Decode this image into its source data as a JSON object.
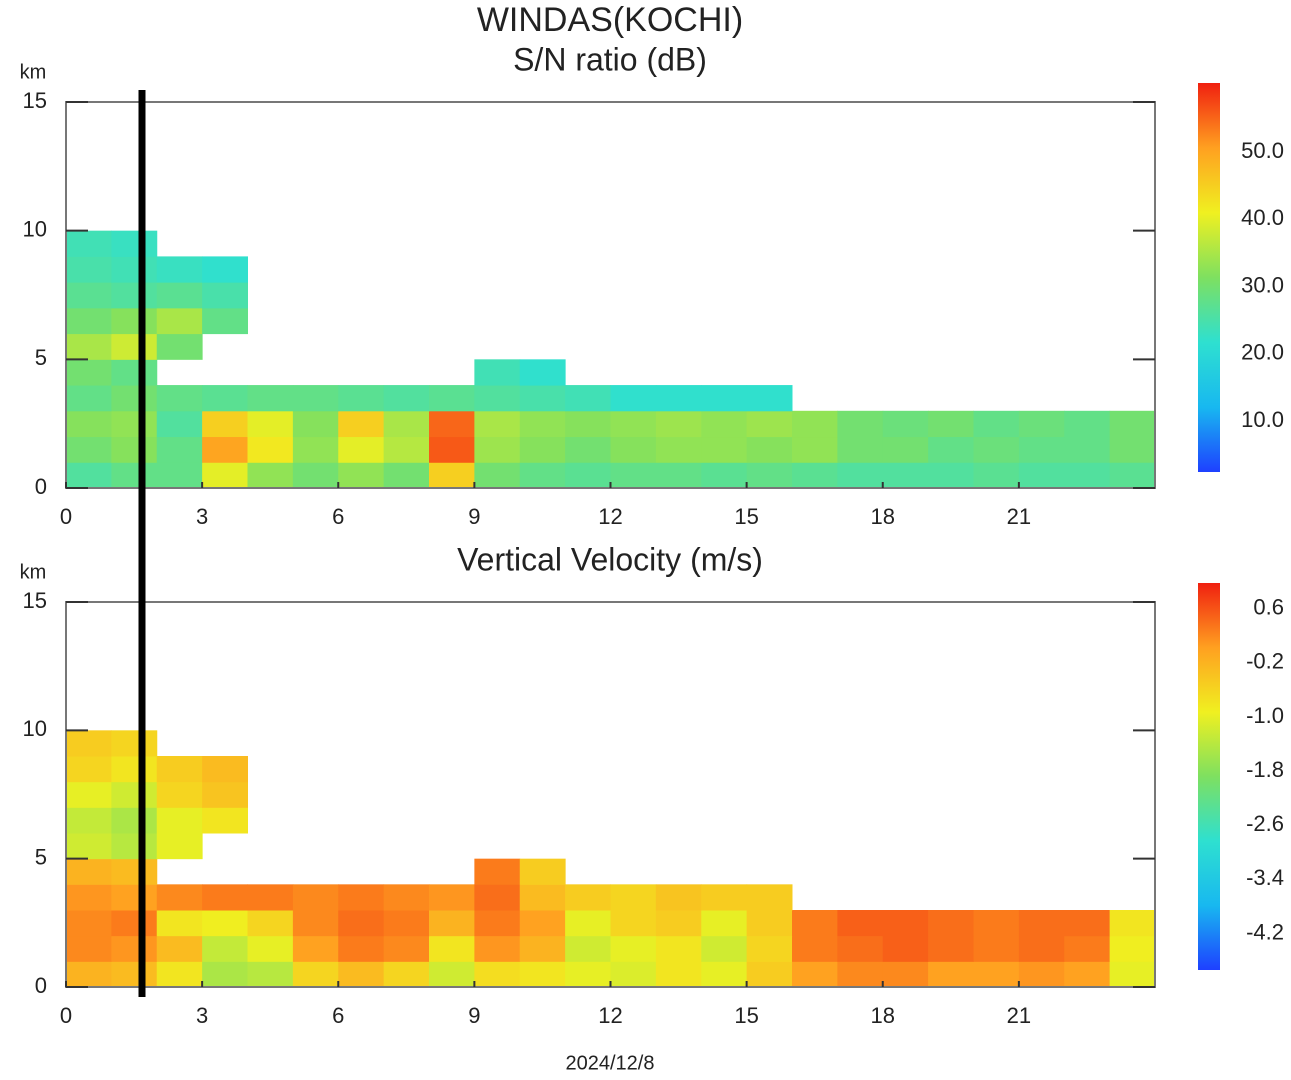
{
  "title": "WINDAS(KOCHI)",
  "xlabel": "2024/12/8",
  "chart_data": [
    {
      "type": "heatmap",
      "title": "S/N ratio (dB)",
      "ylabel": "km",
      "x": [
        0,
        1,
        2,
        3,
        4,
        5,
        6,
        7,
        8,
        9,
        10,
        11,
        12,
        13,
        14,
        15,
        16,
        17,
        18,
        19,
        20,
        21,
        22,
        23
      ],
      "y": [
        0,
        1,
        2,
        3,
        4,
        5,
        6,
        7,
        8,
        9
      ],
      "values": [
        [
          26,
          28,
          28,
          40,
          33,
          30,
          33,
          30,
          45,
          30,
          28,
          27,
          28,
          28,
          27,
          28,
          27,
          26,
          26,
          26,
          27,
          26,
          26,
          27
        ],
        [
          30,
          32,
          28,
          50,
          42,
          33,
          40,
          36,
          56,
          34,
          32,
          30,
          32,
          33,
          33,
          32,
          33,
          30,
          30,
          28,
          29,
          28,
          28,
          30
        ],
        [
          32,
          33,
          26,
          45,
          40,
          32,
          45,
          35,
          55,
          35,
          33,
          32,
          33,
          34,
          33,
          34,
          33,
          30,
          29,
          30,
          28,
          29,
          28,
          30
        ],
        [
          28,
          30,
          28,
          27,
          28,
          28,
          27,
          26,
          27,
          26,
          25,
          24,
          22,
          22,
          22,
          22,
          null,
          null,
          null,
          null,
          null,
          null,
          null,
          null
        ],
        [
          30,
          28,
          null,
          null,
          null,
          null,
          null,
          null,
          null,
          24,
          22,
          null,
          null,
          null,
          null,
          null,
          null,
          null,
          null,
          null,
          null,
          null,
          null,
          null
        ],
        [
          35,
          38,
          30,
          null,
          null,
          null,
          null,
          null,
          null,
          null,
          null,
          null,
          null,
          null,
          null,
          null,
          null,
          null,
          null,
          null,
          null,
          null,
          null,
          null
        ],
        [
          30,
          32,
          35,
          28,
          null,
          null,
          null,
          null,
          null,
          null,
          null,
          null,
          null,
          null,
          null,
          null,
          null,
          null,
          null,
          null,
          null,
          null,
          null,
          null
        ],
        [
          27,
          26,
          27,
          25,
          null,
          null,
          null,
          null,
          null,
          null,
          null,
          null,
          null,
          null,
          null,
          null,
          null,
          null,
          null,
          null,
          null,
          null,
          null,
          null
        ],
        [
          25,
          24,
          23,
          22,
          null,
          null,
          null,
          null,
          null,
          null,
          null,
          null,
          null,
          null,
          null,
          null,
          null,
          null,
          null,
          null,
          null,
          null,
          null,
          null
        ],
        [
          24,
          23,
          null,
          null,
          null,
          null,
          null,
          null,
          null,
          null,
          null,
          null,
          null,
          null,
          null,
          null,
          null,
          null,
          null,
          null,
          null,
          null,
          null,
          null
        ]
      ],
      "xlim": [
        0,
        24
      ],
      "ylim": [
        0,
        15
      ],
      "xticks": [
        0,
        3,
        6,
        9,
        12,
        15,
        18,
        21
      ],
      "yticks": [
        0,
        5,
        10,
        15
      ],
      "colorbar": {
        "lim": [
          2.4,
          60.3
        ],
        "ticks": [
          {
            "value": 10,
            "label": "10.0"
          },
          {
            "value": 20,
            "label": "20.0"
          },
          {
            "value": 30,
            "label": "30.0"
          },
          {
            "value": 40,
            "label": "40.0"
          },
          {
            "value": 50,
            "label": "50.0"
          }
        ]
      },
      "colors": [
        "#1e40ff",
        "#18b8f0",
        "#2ee0d0",
        "#7ee060",
        "#f0f020",
        "#ffa020",
        "#f02010"
      ]
    },
    {
      "type": "heatmap",
      "title": "Vertical Velocity (m/s)",
      "ylabel": "km",
      "x": [
        0,
        1,
        2,
        3,
        4,
        5,
        6,
        7,
        8,
        9,
        10,
        11,
        12,
        13,
        14,
        15,
        16,
        17,
        18,
        19,
        20,
        21,
        22,
        23
      ],
      "y": [
        0,
        1,
        2,
        3,
        4,
        5,
        6,
        7,
        8,
        9
      ],
      "values": [
        [
          -0.2,
          -0.3,
          -0.8,
          -1.5,
          -1.4,
          -0.6,
          -0.3,
          -0.6,
          -1.2,
          -0.7,
          -0.8,
          -1.0,
          -1.1,
          -0.8,
          -1.0,
          -0.5,
          0.0,
          0.2,
          0.2,
          0.0,
          0.0,
          0.1,
          0.0,
          -1.0
        ],
        [
          0.2,
          0.1,
          -0.3,
          -1.3,
          -1.0,
          0.0,
          0.3,
          0.2,
          -0.8,
          0.1,
          -0.2,
          -1.2,
          -1.0,
          -0.8,
          -1.2,
          -0.6,
          0.3,
          0.4,
          0.5,
          0.4,
          0.3,
          0.4,
          0.3,
          -0.9
        ],
        [
          0.2,
          0.3,
          -0.8,
          -0.9,
          -0.6,
          0.2,
          0.4,
          0.3,
          -0.2,
          0.3,
          0.0,
          -1.0,
          -0.6,
          -0.5,
          -1.0,
          -0.5,
          0.3,
          0.5,
          0.5,
          0.4,
          0.3,
          0.4,
          0.4,
          -0.8
        ],
        [
          0.1,
          0.0,
          0.2,
          0.3,
          0.3,
          0.2,
          0.3,
          0.2,
          0.1,
          0.4,
          -0.3,
          -0.5,
          -0.6,
          -0.4,
          -0.5,
          -0.5,
          null,
          null,
          null,
          null,
          null,
          null,
          null,
          null
        ],
        [
          -0.2,
          -0.3,
          null,
          null,
          null,
          null,
          null,
          null,
          null,
          0.3,
          -0.5,
          null,
          null,
          null,
          null,
          null,
          null,
          null,
          null,
          null,
          null,
          null,
          null,
          null
        ],
        [
          -1.2,
          -1.4,
          -1.0,
          null,
          null,
          null,
          null,
          null,
          null,
          null,
          null,
          null,
          null,
          null,
          null,
          null,
          null,
          null,
          null,
          null,
          null,
          null,
          null,
          null
        ],
        [
          -1.3,
          -1.5,
          -1.0,
          -0.8,
          null,
          null,
          null,
          null,
          null,
          null,
          null,
          null,
          null,
          null,
          null,
          null,
          null,
          null,
          null,
          null,
          null,
          null,
          null,
          null
        ],
        [
          -1.0,
          -1.2,
          -0.6,
          -0.4,
          null,
          null,
          null,
          null,
          null,
          null,
          null,
          null,
          null,
          null,
          null,
          null,
          null,
          null,
          null,
          null,
          null,
          null,
          null,
          null
        ],
        [
          -0.6,
          -0.8,
          -0.5,
          -0.3,
          null,
          null,
          null,
          null,
          null,
          null,
          null,
          null,
          null,
          null,
          null,
          null,
          null,
          null,
          null,
          null,
          null,
          null,
          null,
          null
        ],
        [
          -0.5,
          -0.6,
          null,
          null,
          null,
          null,
          null,
          null,
          null,
          null,
          null,
          null,
          null,
          null,
          null,
          null,
          null,
          null,
          null,
          null,
          null,
          null,
          null,
          null
        ]
      ],
      "xlim": [
        0,
        24
      ],
      "ylim": [
        0,
        15
      ],
      "xticks": [
        0,
        3,
        6,
        9,
        12,
        15,
        18,
        21
      ],
      "yticks": [
        0,
        5,
        10,
        15
      ],
      "colorbar": {
        "lim": [
          -4.74,
          0.98
        ],
        "ticks": [
          0.6,
          -0.2,
          {
            "value": -1,
            "label": "-1.0"
          },
          -1.8,
          -2.6,
          -3.4,
          -4.2
        ]
      },
      "colors": [
        "#1e40ff",
        "#18b8f0",
        "#2ee0d0",
        "#7ee060",
        "#f0f020",
        "#ffa020",
        "#f02010"
      ]
    }
  ]
}
